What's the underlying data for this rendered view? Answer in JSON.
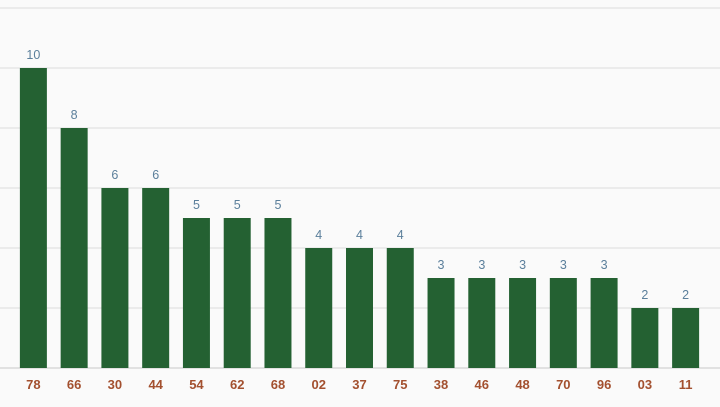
{
  "chart_data": {
    "type": "bar",
    "title": "",
    "xlabel": "",
    "ylabel": "",
    "categories": [
      "78",
      "66",
      "30",
      "44",
      "54",
      "62",
      "68",
      "02",
      "37",
      "75",
      "38",
      "46",
      "48",
      "70",
      "96",
      "03",
      "11"
    ],
    "values": [
      10,
      8,
      6,
      6,
      5,
      5,
      5,
      4,
      4,
      4,
      3,
      3,
      3,
      3,
      3,
      2,
      2
    ],
    "ylim": [
      0,
      12
    ],
    "grid": true,
    "data_labels": true
  },
  "colors": {
    "bar": "#246132",
    "value_label": "#5b7f9b",
    "tick_label": "#a3502f",
    "grid": "#dcdcdc",
    "background": "#fafafa"
  }
}
